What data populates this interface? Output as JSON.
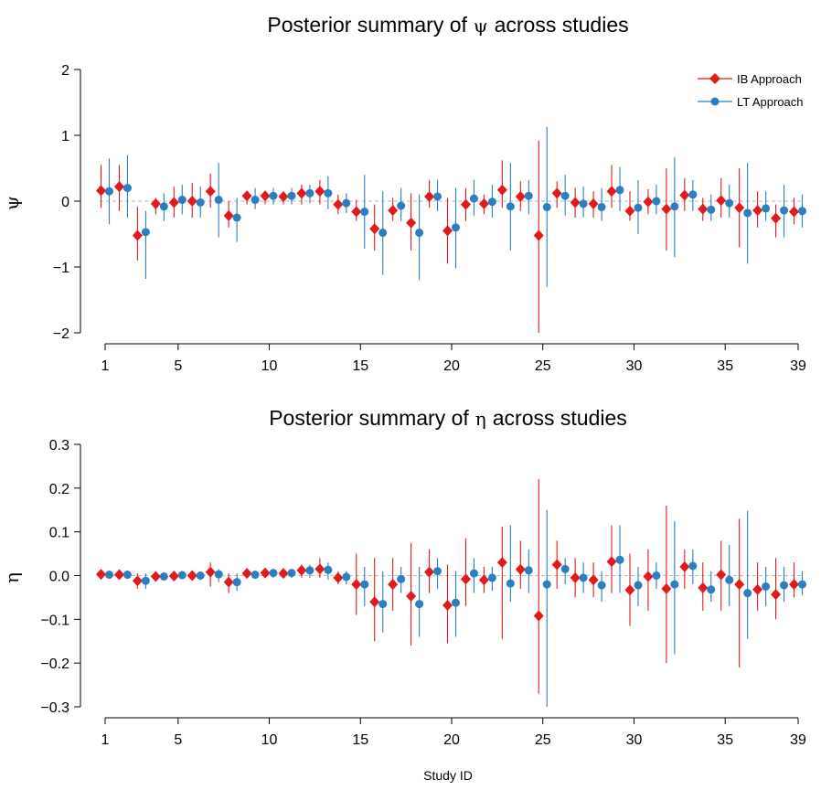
{
  "figure": {
    "xlabel": "Study ID"
  },
  "colors": {
    "ib": "#e31a1c",
    "lt": "#2b7fc0"
  },
  "legend": {
    "ib": "IB Approach",
    "lt": "LT Approach",
    "position": "top-right"
  },
  "chart_data": [
    {
      "type": "scatter",
      "title_prefix": "Posterior summary of",
      "symbol": "ψ",
      "title_suffix": "across studies",
      "ylabel": "ψ",
      "ylim": [
        -2,
        2
      ],
      "yticks": [
        "2",
        "1",
        "0",
        "−1",
        "−2"
      ],
      "ytick_values": [
        2,
        1,
        0,
        -1,
        -2
      ],
      "xticks": [
        1,
        5,
        10,
        15,
        20,
        25,
        30,
        35,
        39
      ],
      "xlim": [
        1,
        39
      ],
      "reference_line": 0,
      "legend_shown": true,
      "series": [
        {
          "name": "IB Approach",
          "marker": "diamond",
          "study": [
            1,
            2,
            3,
            4,
            5,
            6,
            7,
            8,
            9,
            10,
            11,
            12,
            13,
            14,
            15,
            16,
            17,
            18,
            19,
            20,
            21,
            22,
            23,
            24,
            25,
            26,
            27,
            28,
            29,
            30,
            31,
            32,
            33,
            34,
            35,
            36,
            37,
            38,
            39
          ],
          "value": [
            0.16,
            0.22,
            -0.52,
            -0.04,
            -0.02,
            0.0,
            0.15,
            -0.22,
            0.08,
            0.08,
            0.07,
            0.12,
            0.15,
            -0.05,
            -0.16,
            -0.42,
            -0.14,
            -0.33,
            0.07,
            -0.45,
            -0.05,
            -0.04,
            0.17,
            0.07,
            -0.52,
            0.12,
            -0.02,
            -0.04,
            0.15,
            -0.15,
            -0.01,
            -0.12,
            0.09,
            -0.12,
            0.01,
            -0.1,
            -0.14,
            -0.26,
            -0.16
          ],
          "lower": [
            -0.1,
            -0.15,
            -0.9,
            -0.2,
            -0.25,
            -0.25,
            -0.1,
            -0.4,
            -0.05,
            -0.05,
            -0.05,
            -0.05,
            -0.05,
            -0.2,
            -0.3,
            -0.75,
            -0.3,
            -0.75,
            -0.1,
            -0.95,
            -0.3,
            -0.2,
            -0.1,
            -0.15,
            -2.0,
            -0.1,
            -0.25,
            -0.25,
            -0.1,
            -0.3,
            -0.2,
            -0.75,
            -0.15,
            -0.3,
            -0.25,
            -0.7,
            -0.4,
            -0.55,
            -0.35
          ],
          "upper": [
            0.55,
            0.55,
            -0.08,
            0.05,
            0.22,
            0.28,
            0.42,
            0.0,
            0.15,
            0.15,
            0.15,
            0.25,
            0.32,
            0.1,
            0.02,
            -0.05,
            0.05,
            0.12,
            0.32,
            0.05,
            0.2,
            0.1,
            0.62,
            0.3,
            0.92,
            0.3,
            0.2,
            0.15,
            0.55,
            0.15,
            0.18,
            0.5,
            0.35,
            0.05,
            0.35,
            0.5,
            0.15,
            -0.05,
            0.05
          ]
        },
        {
          "name": "LT Approach",
          "marker": "circle",
          "study": [
            1,
            2,
            3,
            4,
            5,
            6,
            7,
            8,
            9,
            10,
            11,
            12,
            13,
            14,
            15,
            16,
            17,
            18,
            19,
            20,
            21,
            22,
            23,
            24,
            25,
            26,
            27,
            28,
            29,
            30,
            31,
            32,
            33,
            34,
            35,
            36,
            37,
            38,
            39
          ],
          "value": [
            0.15,
            0.2,
            -0.47,
            -0.08,
            0.02,
            -0.02,
            0.02,
            -0.25,
            0.02,
            0.08,
            0.08,
            0.12,
            0.12,
            -0.03,
            -0.16,
            -0.48,
            -0.07,
            -0.48,
            0.07,
            -0.4,
            0.04,
            -0.01,
            -0.08,
            0.08,
            -0.09,
            0.08,
            -0.04,
            -0.09,
            0.17,
            -0.1,
            0.0,
            -0.08,
            0.1,
            -0.13,
            -0.03,
            -0.18,
            -0.11,
            -0.14,
            -0.15
          ],
          "lower": [
            -0.35,
            -0.25,
            -1.18,
            -0.3,
            -0.2,
            -0.25,
            -0.55,
            -0.62,
            -0.12,
            -0.05,
            -0.05,
            -0.03,
            -0.12,
            -0.18,
            -0.72,
            -1.12,
            -0.3,
            -1.2,
            -0.15,
            -1.02,
            -0.22,
            -0.25,
            -0.75,
            -0.2,
            -1.3,
            -0.22,
            -0.25,
            -0.3,
            -0.15,
            -0.5,
            -0.2,
            -0.85,
            -0.15,
            -0.3,
            -0.25,
            -0.95,
            -0.3,
            -0.55,
            -0.4
          ],
          "upper": [
            0.65,
            0.7,
            -0.15,
            0.12,
            0.25,
            0.22,
            0.58,
            0.05,
            0.2,
            0.2,
            0.2,
            0.25,
            0.38,
            0.12,
            0.4,
            0.15,
            0.2,
            0.1,
            0.32,
            0.2,
            0.32,
            0.25,
            0.58,
            0.32,
            1.13,
            0.4,
            0.22,
            0.2,
            0.52,
            0.32,
            0.25,
            0.67,
            0.32,
            0.1,
            0.25,
            0.58,
            0.15,
            0.25,
            0.1
          ]
        }
      ]
    },
    {
      "type": "scatter",
      "title_prefix": "Posterior summary of",
      "symbol": "η",
      "title_suffix": "across studies",
      "ylabel": "η",
      "ylim": [
        -0.3,
        0.3
      ],
      "yticks": [
        "0.3",
        "0.2",
        "0.1",
        "0.0",
        "−0.1",
        "−0.2",
        "−0.3"
      ],
      "ytick_values": [
        0.3,
        0.2,
        0.1,
        0,
        -0.1,
        -0.2,
        -0.3
      ],
      "xticks": [
        1,
        5,
        10,
        15,
        20,
        25,
        30,
        35,
        39
      ],
      "xlim": [
        1,
        39
      ],
      "reference_line": 0,
      "legend_shown": false,
      "series": [
        {
          "name": "IB Approach",
          "marker": "diamond",
          "study": [
            1,
            2,
            3,
            4,
            5,
            6,
            7,
            8,
            9,
            10,
            11,
            12,
            13,
            14,
            15,
            16,
            17,
            18,
            19,
            20,
            21,
            22,
            23,
            24,
            25,
            26,
            27,
            28,
            29,
            30,
            31,
            32,
            33,
            34,
            35,
            36,
            37,
            38,
            39
          ],
          "value": [
            0.003,
            0.002,
            -0.012,
            -0.002,
            -0.001,
            0.0,
            0.008,
            -0.015,
            0.005,
            0.006,
            0.005,
            0.012,
            0.015,
            -0.005,
            -0.02,
            -0.06,
            -0.02,
            -0.047,
            0.008,
            -0.068,
            -0.008,
            -0.01,
            0.03,
            0.014,
            -0.092,
            0.025,
            -0.005,
            -0.01,
            0.032,
            -0.033,
            -0.002,
            -0.03,
            0.02,
            -0.028,
            0.002,
            -0.02,
            -0.032,
            -0.043,
            -0.02
          ],
          "lower": [
            -0.005,
            -0.005,
            -0.03,
            -0.01,
            -0.01,
            -0.01,
            -0.025,
            -0.04,
            -0.005,
            -0.005,
            -0.005,
            -0.005,
            -0.005,
            -0.02,
            -0.09,
            -0.15,
            -0.08,
            -0.16,
            -0.04,
            -0.155,
            -0.07,
            -0.04,
            -0.145,
            -0.03,
            -0.27,
            -0.03,
            -0.05,
            -0.05,
            -0.04,
            -0.115,
            -0.08,
            -0.2,
            -0.03,
            -0.08,
            -0.08,
            -0.21,
            -0.08,
            -0.1,
            -0.05
          ],
          "upper": [
            0.01,
            0.01,
            0.005,
            0.005,
            0.005,
            0.005,
            0.03,
            0.005,
            0.015,
            0.015,
            0.015,
            0.025,
            0.04,
            0.01,
            0.05,
            0.04,
            0.04,
            0.075,
            0.06,
            0.025,
            0.085,
            0.02,
            0.112,
            0.08,
            0.22,
            0.08,
            0.04,
            0.03,
            0.115,
            0.05,
            0.06,
            0.16,
            0.06,
            0.03,
            0.08,
            0.13,
            0.03,
            0.04,
            0.03
          ]
        },
        {
          "name": "LT Approach",
          "marker": "circle",
          "study": [
            1,
            2,
            3,
            4,
            5,
            6,
            7,
            8,
            9,
            10,
            11,
            12,
            13,
            14,
            15,
            16,
            17,
            18,
            19,
            20,
            21,
            22,
            23,
            24,
            25,
            26,
            27,
            28,
            29,
            30,
            31,
            32,
            33,
            34,
            35,
            36,
            37,
            38,
            39
          ],
          "value": [
            0.002,
            0.002,
            -0.012,
            -0.002,
            0.001,
            0.0,
            0.003,
            -0.015,
            0.002,
            0.006,
            0.006,
            0.012,
            0.013,
            -0.003,
            -0.02,
            -0.065,
            -0.008,
            -0.065,
            0.01,
            -0.062,
            0.005,
            -0.005,
            -0.018,
            0.012,
            -0.02,
            0.015,
            -0.005,
            -0.022,
            0.036,
            -0.022,
            0.0,
            -0.02,
            0.022,
            -0.032,
            -0.01,
            -0.04,
            -0.025,
            -0.022,
            -0.02
          ],
          "lower": [
            -0.005,
            -0.005,
            -0.03,
            -0.01,
            -0.005,
            -0.01,
            -0.015,
            -0.035,
            -0.005,
            -0.005,
            -0.005,
            -0.005,
            -0.01,
            -0.02,
            -0.07,
            -0.13,
            -0.04,
            -0.14,
            -0.03,
            -0.14,
            -0.04,
            -0.035,
            -0.06,
            -0.04,
            -0.33,
            -0.02,
            -0.04,
            -0.06,
            -0.04,
            -0.07,
            -0.03,
            -0.18,
            -0.02,
            -0.06,
            -0.07,
            -0.145,
            -0.07,
            -0.06,
            -0.045
          ],
          "upper": [
            0.01,
            0.01,
            0.005,
            0.005,
            0.005,
            0.005,
            0.015,
            0.005,
            0.01,
            0.015,
            0.015,
            0.025,
            0.03,
            0.01,
            0.02,
            0.01,
            0.02,
            0.02,
            0.04,
            0.01,
            0.04,
            0.02,
            0.115,
            0.06,
            0.15,
            0.04,
            0.03,
            0.01,
            0.115,
            0.02,
            0.03,
            0.125,
            0.06,
            0.01,
            0.07,
            0.148,
            0.02,
            0.02,
            0.01
          ]
        }
      ]
    }
  ]
}
